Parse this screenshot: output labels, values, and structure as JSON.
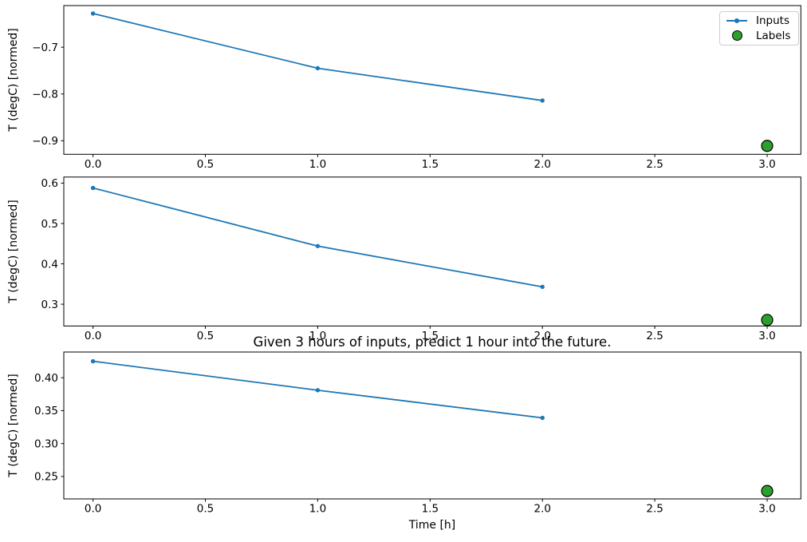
{
  "figure": {
    "colors": {
      "inputs_line": "#1f77b4",
      "labels_marker_fill": "#2ca02c",
      "labels_marker_edge": "#000000",
      "axes_edge": "#000000",
      "text": "#000000"
    },
    "legend": {
      "location": "upper right",
      "items": [
        {
          "label": "Inputs",
          "swatch": "line-with-dot-marker",
          "color": "#1f77b4"
        },
        {
          "label": "Labels",
          "swatch": "filled-circle",
          "color": "#2ca02c"
        }
      ]
    }
  },
  "chart_data": [
    {
      "type": "line",
      "title": "",
      "ylabel": "T (degC) [normed]",
      "xlabel": "",
      "x": [
        0,
        1,
        2
      ],
      "series": [
        {
          "name": "Inputs",
          "values": [
            -0.628,
            -0.745,
            -0.814
          ]
        }
      ],
      "label_point": {
        "name": "Labels",
        "x": 3,
        "y": -0.911
      },
      "xlim": [
        -0.13,
        3.15
      ],
      "ylim": [
        -0.929,
        -0.611
      ],
      "xtick_values": [
        0,
        0.5,
        1,
        1.5,
        2,
        2.5,
        3
      ],
      "xtick_labels": [
        "0.0",
        "0.5",
        "1.0",
        "1.5",
        "2.0",
        "2.5",
        "3.0"
      ],
      "ytick_values": [
        -0.7,
        -0.8,
        -0.9
      ],
      "ytick_labels": [
        "−0.7",
        "−0.8",
        "−0.9"
      ],
      "grid": false,
      "legend_shown": true
    },
    {
      "type": "line",
      "title": "",
      "ylabel": "T (degC) [normed]",
      "xlabel": "",
      "x": [
        0,
        1,
        2
      ],
      "series": [
        {
          "name": "Inputs",
          "values": [
            0.588,
            0.444,
            0.343
          ]
        }
      ],
      "label_point": {
        "name": "Labels",
        "x": 3,
        "y": 0.261
      },
      "xlim": [
        -0.13,
        3.15
      ],
      "ylim": [
        0.246,
        0.615
      ],
      "xtick_values": [
        0,
        0.5,
        1,
        1.5,
        2,
        2.5,
        3
      ],
      "xtick_labels": [
        "0.0",
        "0.5",
        "1.0",
        "1.5",
        "2.0",
        "2.5",
        "3.0"
      ],
      "ytick_values": [
        0.6,
        0.5,
        0.4,
        0.3
      ],
      "ytick_labels": [
        "0.6",
        "0.5",
        "0.4",
        "0.3"
      ],
      "grid": false,
      "legend_shown": false
    },
    {
      "type": "line",
      "title": "Given 3 hours of inputs, predict 1 hour into the future.",
      "ylabel": "T (degC) [normed]",
      "xlabel": "Time [h]",
      "x": [
        0,
        1,
        2
      ],
      "series": [
        {
          "name": "Inputs",
          "values": [
            0.425,
            0.381,
            0.339
          ]
        }
      ],
      "label_point": {
        "name": "Labels",
        "x": 3,
        "y": 0.228
      },
      "xlim": [
        -0.13,
        3.15
      ],
      "ylim": [
        0.216,
        0.439
      ],
      "xtick_values": [
        0,
        0.5,
        1,
        1.5,
        2,
        2.5,
        3
      ],
      "xtick_labels": [
        "0.0",
        "0.5",
        "1.0",
        "1.5",
        "2.0",
        "2.5",
        "3.0"
      ],
      "ytick_values": [
        0.4,
        0.35,
        0.3,
        0.25
      ],
      "ytick_labels": [
        "0.40",
        "0.35",
        "0.30",
        "0.25"
      ],
      "grid": false,
      "legend_shown": false
    }
  ]
}
